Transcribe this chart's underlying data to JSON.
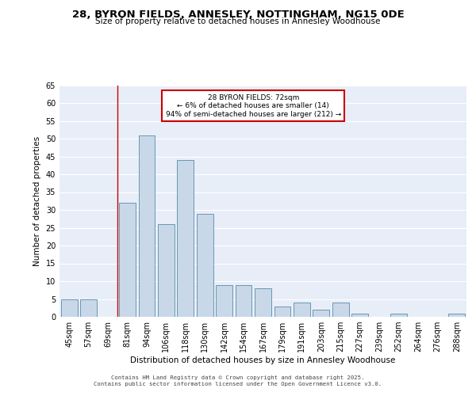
{
  "title": "28, BYRON FIELDS, ANNESLEY, NOTTINGHAM, NG15 0DE",
  "subtitle": "Size of property relative to detached houses in Annesley Woodhouse",
  "xlabel": "Distribution of detached houses by size in Annesley Woodhouse",
  "ylabel": "Number of detached properties",
  "categories": [
    "45sqm",
    "57sqm",
    "69sqm",
    "81sqm",
    "94sqm",
    "106sqm",
    "118sqm",
    "130sqm",
    "142sqm",
    "154sqm",
    "167sqm",
    "179sqm",
    "191sqm",
    "203sqm",
    "215sqm",
    "227sqm",
    "239sqm",
    "252sqm",
    "264sqm",
    "276sqm",
    "288sqm"
  ],
  "values": [
    5,
    5,
    0,
    32,
    51,
    26,
    44,
    29,
    9,
    9,
    8,
    3,
    4,
    2,
    4,
    1,
    0,
    1,
    0,
    0,
    1
  ],
  "bar_color": "#c8d8e8",
  "bar_edge_color": "#5a8aaa",
  "background_color": "#e8eef8",
  "grid_color": "#ffffff",
  "annotation_line1": "28 BYRON FIELDS: 72sqm",
  "annotation_line2": "← 6% of detached houses are smaller (14)",
  "annotation_line3": "94% of semi-detached houses are larger (212) →",
  "annotation_box_color": "#ffffff",
  "annotation_box_edge_color": "#cc0000",
  "vline_x_index": 2.5,
  "vline_color": "#cc0000",
  "ylim": [
    0,
    65
  ],
  "yticks": [
    0,
    5,
    10,
    15,
    20,
    25,
    30,
    35,
    40,
    45,
    50,
    55,
    60,
    65
  ],
  "footer_line1": "Contains HM Land Registry data © Crown copyright and database right 2025.",
  "footer_line2": "Contains public sector information licensed under the Open Government Licence v3.0."
}
